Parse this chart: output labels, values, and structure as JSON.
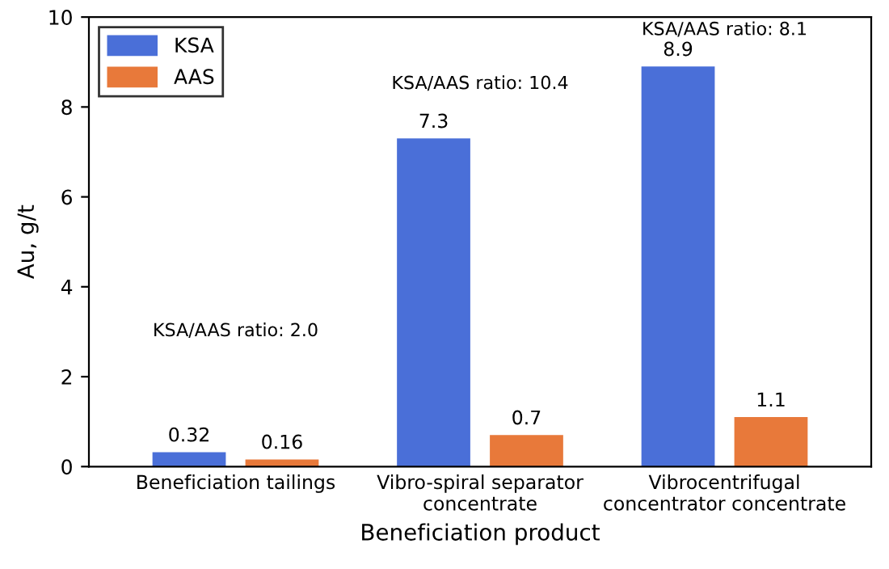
{
  "chart_data": {
    "type": "bar",
    "xlabel": "Beneficiation product",
    "ylabel": "Au, g/t",
    "categories": [
      "Beneficiation tailings",
      "Vibro-spiral separator\nconcentrate",
      "Vibrocentrifugal\nconcentrator concentrate"
    ],
    "series": [
      {
        "name": "KSA",
        "color": "#4a6fd8",
        "values": [
          0.32,
          7.3,
          8.9
        ]
      },
      {
        "name": "AAS",
        "color": "#e8793a",
        "values": [
          0.16,
          0.7,
          1.1
        ]
      }
    ],
    "ylim": [
      0,
      10
    ],
    "yticks": [
      0,
      2,
      4,
      6,
      8,
      10
    ],
    "grid": false,
    "legend": "top left",
    "data_labels": true,
    "annotations": [
      "KSA/AAS ratio: 2.0",
      "KSA/AAS ratio: 10.4",
      "KSA/AAS ratio: 8.1"
    ]
  }
}
